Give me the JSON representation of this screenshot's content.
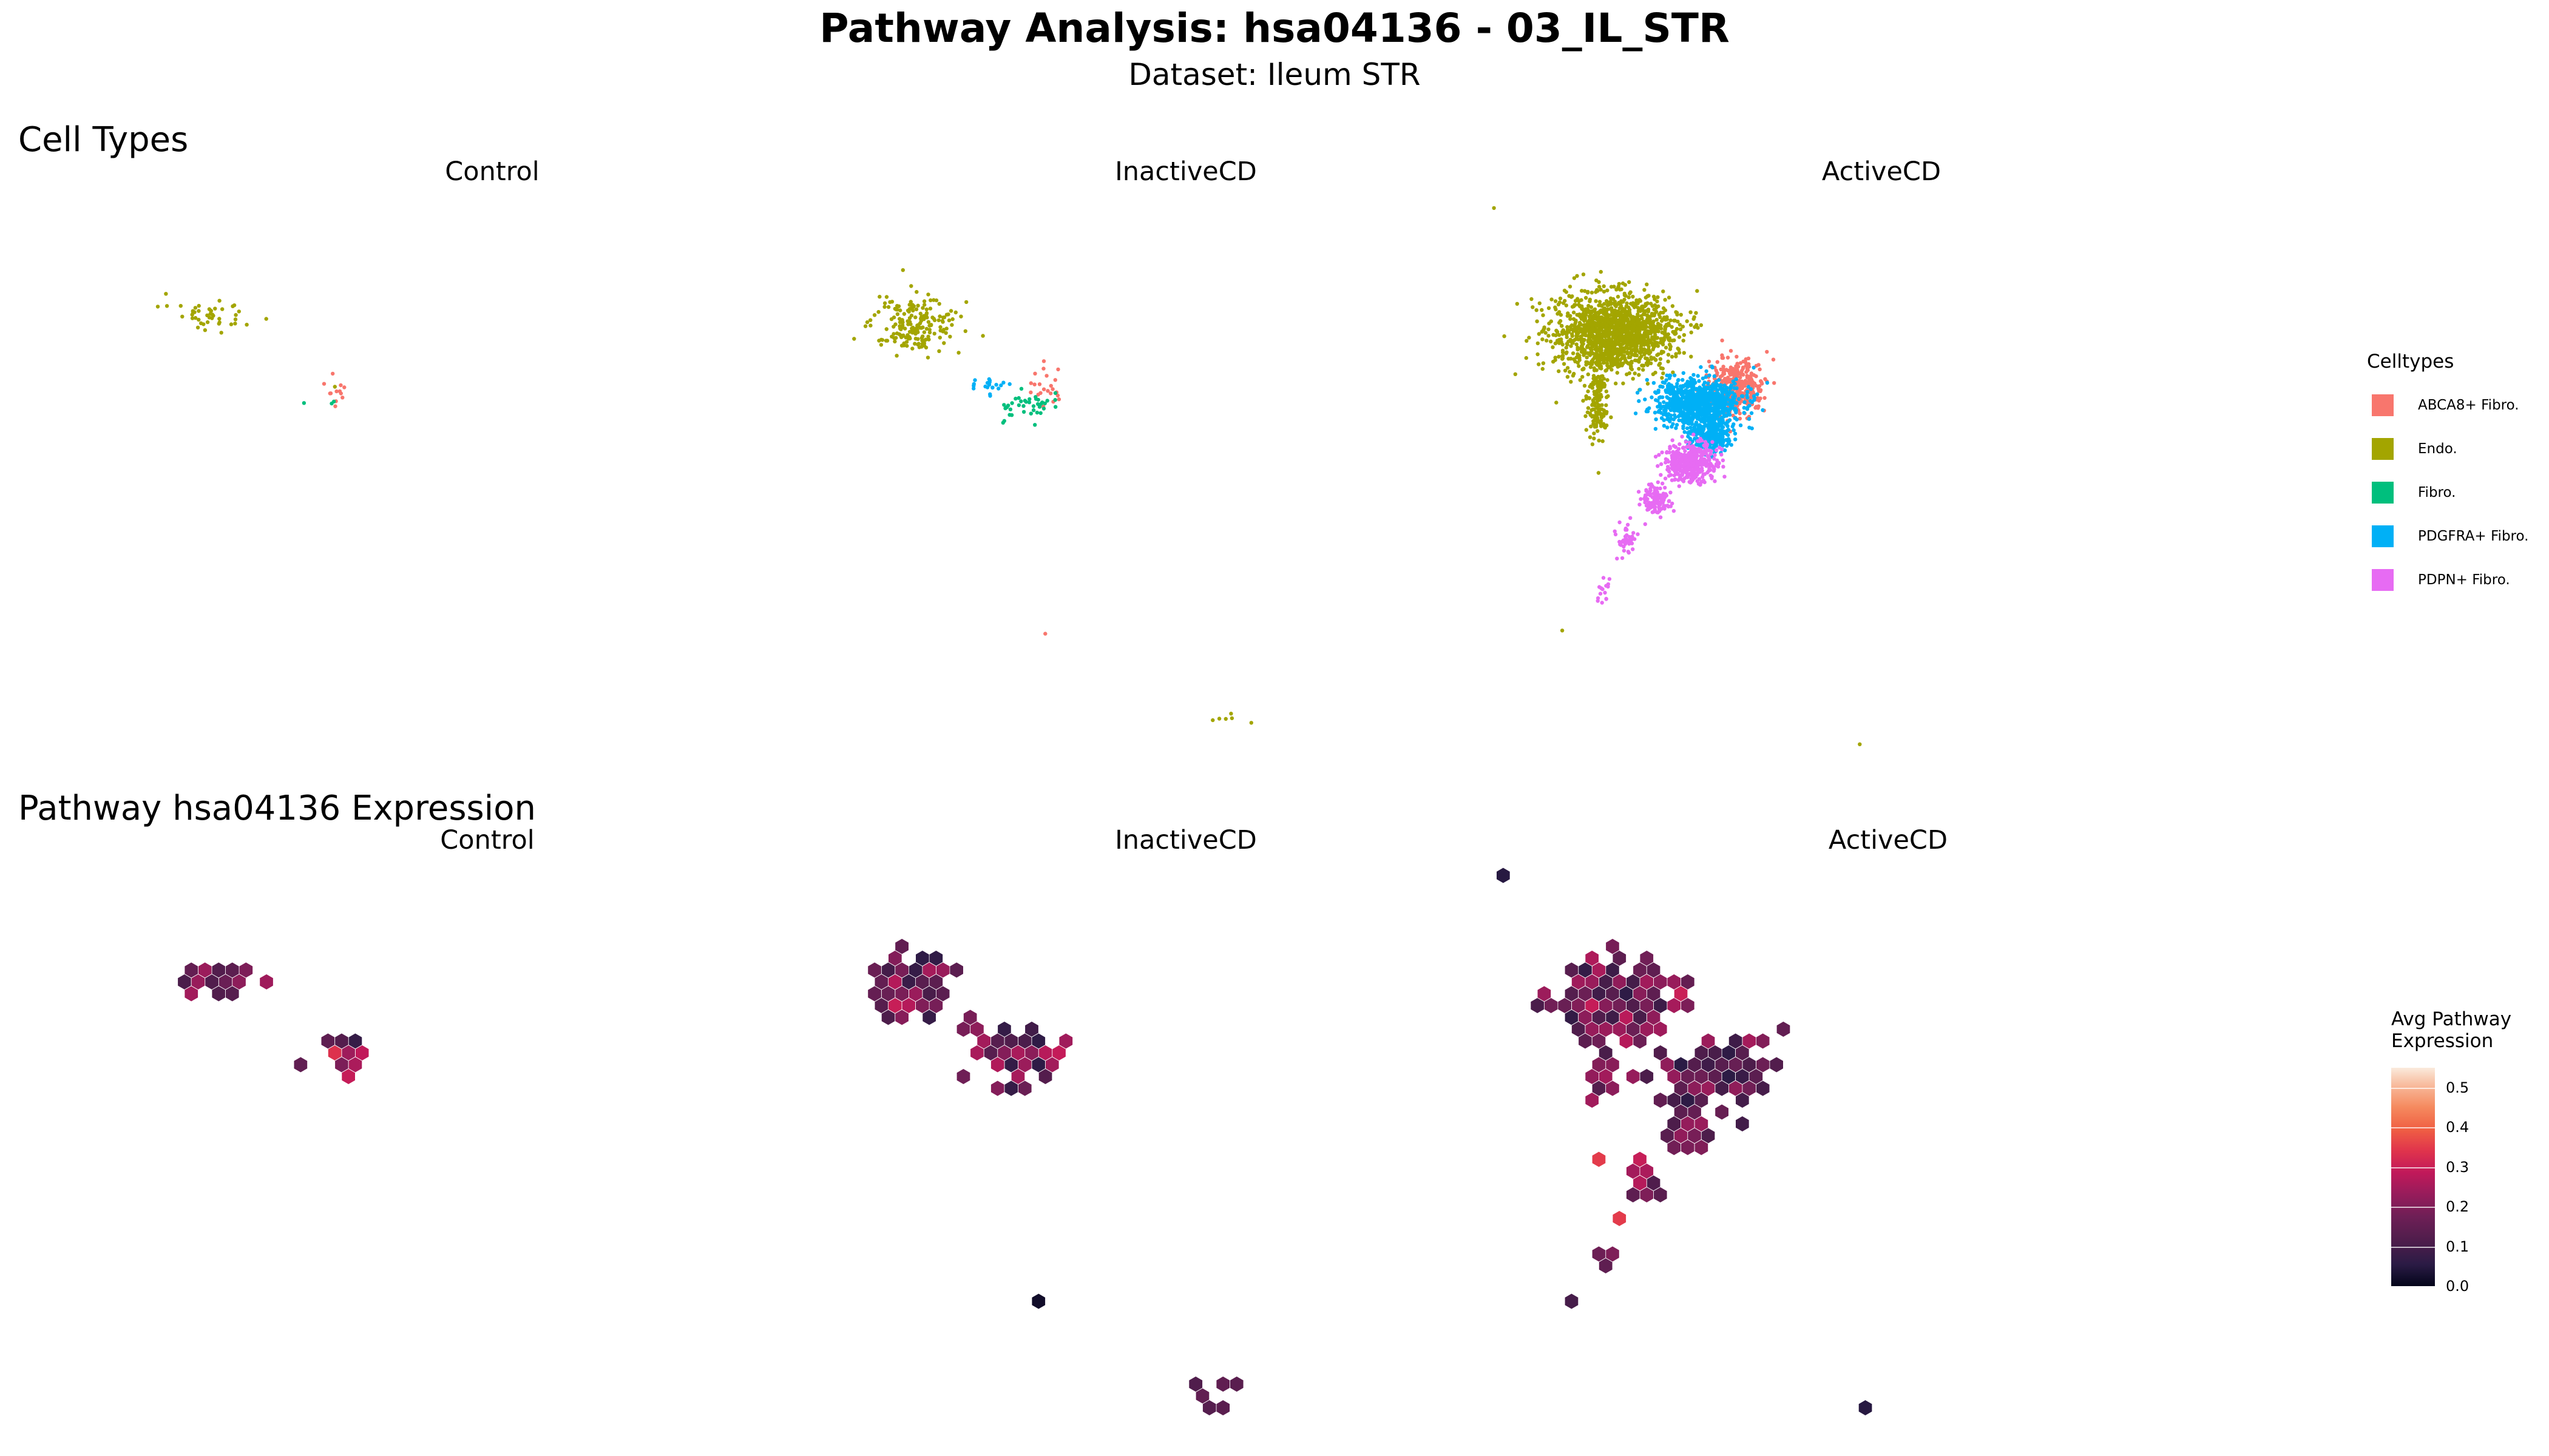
{
  "title": "Pathway Analysis: hsa04136 - 03_IL_STR",
  "subtitle": "Dataset: Ileum STR",
  "sections": {
    "celltypes": "Cell Types",
    "expression": "Pathway hsa04136 Expression"
  },
  "panels": [
    "Control",
    "InactiveCD",
    "ActiveCD"
  ],
  "legend": {
    "title": "Celltypes",
    "items": [
      {
        "label": "ABCA8+ Fibro.",
        "color": "#f8766d"
      },
      {
        "label": "Endo.",
        "color": "#a3a500"
      },
      {
        "label": "Fibro.",
        "color": "#00bf7d"
      },
      {
        "label": "PDGFRA+ Fibro.",
        "color": "#00b0f6"
      },
      {
        "label": "PDPN+ Fibro.",
        "color": "#e76bf3"
      }
    ]
  },
  "colorbar": {
    "title_line1": "Avg Pathway",
    "title_line2": "Expression",
    "ticks": [
      "0.5",
      "0.4",
      "0.3",
      "0.2",
      "0.1",
      "0.0"
    ],
    "range": [
      0.0,
      0.55
    ]
  },
  "chart_data": [
    {
      "type": "scatter",
      "title": "Cell Types",
      "facets": [
        "Control",
        "InactiveCD",
        "ActiveCD"
      ],
      "legend_title": "Celltypes",
      "legend_position": "right",
      "grid": false,
      "series": [
        {
          "name": "ABCA8+ Fibro.",
          "color": "#f8766d",
          "clusters": [
            {
              "facet": "Control",
              "center": [
                208,
                240
              ],
              "spread": [
                7,
                12
              ],
              "count": 12
            },
            {
              "facet": "InactiveCD",
              "center": [
                644,
                238
              ],
              "spread": [
                10,
                10
              ],
              "count": 22
            },
            {
              "facet": "InactiveCD",
              "center": [
                643,
                390
              ],
              "spread": [
                0,
                0
              ],
              "count": 1
            },
            {
              "facet": "ActiveCD",
              "center": [
                1068,
                238
              ],
              "spread": [
                14,
                14
              ],
              "count": 380
            }
          ]
        },
        {
          "name": "Endo.",
          "color": "#a3a500",
          "clusters": [
            {
              "facet": "Control",
              "center": [
                132,
                193
              ],
              "spread": [
                22,
                8
              ],
              "count": 45
            },
            {
              "facet": "Control",
              "center": [
                206,
                238
              ],
              "spread": [
                0,
                0
              ],
              "count": 1
            },
            {
              "facet": "InactiveCD",
              "center": [
                563,
                200
              ],
              "spread": [
                22,
                14
              ],
              "count": 200
            },
            {
              "facet": "InactiveCD",
              "center": [
                752,
                442
              ],
              "spread": [
                20,
                6
              ],
              "count": 6
            },
            {
              "facet": "ActiveCD",
              "center": [
                993,
                205
              ],
              "spread": [
                30,
                20
              ],
              "count": 1500
            },
            {
              "facet": "ActiveCD",
              "center": [
                982,
                248
              ],
              "spread": [
                6,
                20
              ],
              "count": 150
            },
            {
              "facet": "ActiveCD",
              "center": [
                919,
                128
              ],
              "spread": [
                0,
                0
              ],
              "count": 1
            },
            {
              "facet": "ActiveCD",
              "center": [
                961,
                388
              ],
              "spread": [
                0,
                0
              ],
              "count": 1
            },
            {
              "facet": "ActiveCD",
              "center": [
                1144,
                458
              ],
              "spread": [
                0,
                0
              ],
              "count": 1
            }
          ]
        },
        {
          "name": "Fibro.",
          "color": "#00bf7d",
          "clusters": [
            {
              "facet": "Control",
              "center": [
                187,
                248
              ],
              "spread": [
                0,
                0
              ],
              "count": 1
            },
            {
              "facet": "Control",
              "center": [
                205,
                248
              ],
              "spread": [
                2,
                2
              ],
              "count": 2
            },
            {
              "facet": "InactiveCD",
              "center": [
                632,
                250
              ],
              "spread": [
                12,
                8
              ],
              "count": 40
            }
          ]
        },
        {
          "name": "PDGFRA+ Fibro.",
          "color": "#00b0f6",
          "clusters": [
            {
              "facet": "InactiveCD",
              "center": [
                608,
                238
              ],
              "spread": [
                10,
                6
              ],
              "count": 20
            },
            {
              "facet": "ActiveCD",
              "center": [
                1045,
                248
              ],
              "spread": [
                22,
                12
              ],
              "count": 900
            },
            {
              "facet": "ActiveCD",
              "center": [
                1052,
                268
              ],
              "spread": [
                10,
                8
              ],
              "count": 300
            }
          ]
        },
        {
          "name": "PDPN+ Fibro.",
          "color": "#e76bf3",
          "clusters": [
            {
              "facet": "ActiveCD",
              "center": [
                1040,
                285
              ],
              "spread": [
                14,
                10
              ],
              "count": 400
            },
            {
              "facet": "ActiveCD",
              "center": [
                1018,
                308
              ],
              "spread": [
                8,
                8
              ],
              "count": 120
            },
            {
              "facet": "ActiveCD",
              "center": [
                1000,
                330
              ],
              "spread": [
                6,
                8
              ],
              "count": 40
            },
            {
              "facet": "ActiveCD",
              "center": [
                985,
                362
              ],
              "spread": [
                4,
                8
              ],
              "count": 15
            }
          ]
        }
      ]
    },
    {
      "type": "heatmap",
      "title": "Pathway hsa04136 Expression",
      "facets": [
        "Control",
        "InactiveCD",
        "ActiveCD"
      ],
      "colorbar_title": "Avg Pathway Expression",
      "colorbar_range": [
        0.0,
        0.55
      ],
      "grid": false,
      "hex_clusters": [
        {
          "facet": "Control",
          "center": [
            132,
            603
          ],
          "spread": [
            20,
            8
          ],
          "count": 14,
          "value_range": [
            0.1,
            0.25
          ]
        },
        {
          "facet": "Control",
          "center": [
            210,
            648
          ],
          "spread": [
            12,
            12
          ],
          "count": 9,
          "value_range": [
            0.05,
            0.35
          ]
        },
        {
          "facet": "Control",
          "center": [
            185,
            656
          ],
          "spread": [
            0,
            0
          ],
          "count": 1,
          "value_range": [
            0.15,
            0.15
          ]
        },
        {
          "facet": "InactiveCD",
          "center": [
            560,
            605
          ],
          "spread": [
            20,
            15
          ],
          "count": 30,
          "value_range": [
            0.05,
            0.3
          ]
        },
        {
          "facet": "InactiveCD",
          "center": [
            630,
            650
          ],
          "spread": [
            18,
            12
          ],
          "count": 26,
          "value_range": [
            0.05,
            0.3
          ]
        },
        {
          "facet": "InactiveCD",
          "center": [
            598,
            630
          ],
          "spread": [
            6,
            4
          ],
          "count": 3,
          "value_range": [
            0.15,
            0.25
          ]
        },
        {
          "facet": "InactiveCD",
          "center": [
            642,
            803
          ],
          "spread": [
            0,
            0
          ],
          "count": 1,
          "value_range": [
            0.02,
            0.02
          ]
        },
        {
          "facet": "InactiveCD",
          "center": [
            752,
            855
          ],
          "spread": [
            22,
            6
          ],
          "count": 6,
          "value_range": [
            0.1,
            0.15
          ]
        },
        {
          "facet": "ActiveCD",
          "center": [
            993,
            615
          ],
          "spread": [
            30,
            22
          ],
          "count": 60,
          "value_range": [
            0.05,
            0.3
          ]
        },
        {
          "facet": "ActiveCD",
          "center": [
            1060,
            660
          ],
          "spread": [
            28,
            18
          ],
          "count": 40,
          "value_range": [
            0.05,
            0.25
          ]
        },
        {
          "facet": "ActiveCD",
          "center": [
            985,
            665
          ],
          "spread": [
            6,
            20
          ],
          "count": 8,
          "value_range": [
            0.1,
            0.25
          ]
        },
        {
          "facet": "ActiveCD",
          "center": [
            1042,
            690
          ],
          "spread": [
            14,
            16
          ],
          "count": 12,
          "value_range": [
            0.1,
            0.25
          ]
        },
        {
          "facet": "ActiveCD",
          "center": [
            1012,
            728
          ],
          "spread": [
            10,
            14
          ],
          "count": 8,
          "value_range": [
            0.1,
            0.3
          ]
        },
        {
          "facet": "ActiveCD",
          "center": [
            983,
            713
          ],
          "spread": [
            0,
            0
          ],
          "count": 1,
          "value_range": [
            0.35,
            0.35
          ]
        },
        {
          "facet": "ActiveCD",
          "center": [
            993,
            752
          ],
          "spread": [
            0,
            0
          ],
          "count": 1,
          "value_range": [
            0.35,
            0.35
          ]
        },
        {
          "facet": "ActiveCD",
          "center": [
            987,
            775
          ],
          "spread": [
            6,
            4
          ],
          "count": 3,
          "value_range": [
            0.05,
            0.25
          ]
        },
        {
          "facet": "ActiveCD",
          "center": [
            963,
            798
          ],
          "spread": [
            0,
            0
          ],
          "count": 1,
          "value_range": [
            0.1,
            0.1
          ]
        },
        {
          "facet": "ActiveCD",
          "center": [
            922,
            540
          ],
          "spread": [
            0,
            0
          ],
          "count": 1,
          "value_range": [
            0.05,
            0.05
          ]
        },
        {
          "facet": "ActiveCD",
          "center": [
            1149,
            867
          ],
          "spread": [
            0,
            0
          ],
          "count": 1,
          "value_range": [
            0.05,
            0.05
          ]
        }
      ]
    }
  ]
}
